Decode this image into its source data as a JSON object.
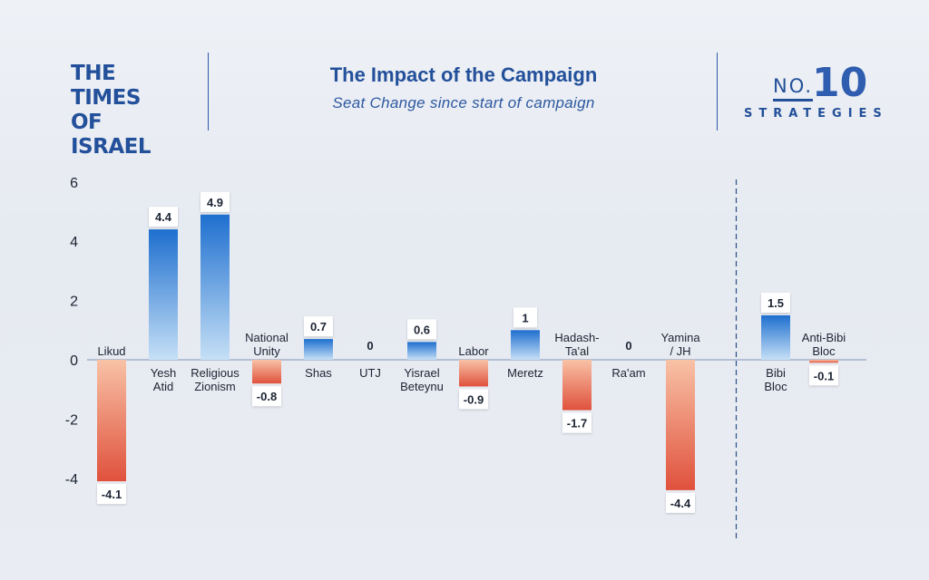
{
  "header": {
    "logo_line1": "THE TIMES",
    "logo_line2": "OF ISRAEL",
    "brand_no": "NO.",
    "brand_number": "10",
    "brand_word": "STRATEGIES"
  },
  "colors": {
    "positive_top": "#1e6fcf",
    "positive_bottom": "#c6e0f6",
    "negative_top": "#f8c2a6",
    "negative_bottom": "#e0513c",
    "text_dark": "#1c2433",
    "title_blue": "#23509a"
  },
  "chart_data": {
    "type": "bar",
    "title": "The Impact of the Campaign",
    "subtitle": "Seat Change since start of campaign",
    "xlabel": "",
    "ylabel": "",
    "ylim": [
      -6,
      6
    ],
    "yticks": [
      6,
      4,
      2,
      0,
      -2,
      -4
    ],
    "categories": [
      "Likud",
      "Yesh Atid",
      "Religious Zionism",
      "National Unity",
      "Shas",
      "UTJ",
      "Yisrael Beteynu",
      "Labor",
      "Meretz",
      "Hadash-Ta'al",
      "Ra'am",
      "Yamina / JH",
      "Bibi Bloc",
      "Anti-Bibi Bloc"
    ],
    "category_lines": [
      [
        "Likud"
      ],
      [
        "Yesh",
        "Atid"
      ],
      [
        "Religious",
        "Zionism"
      ],
      [
        "National",
        "Unity"
      ],
      [
        "Shas"
      ],
      [
        "UTJ"
      ],
      [
        "Yisrael",
        "Beteynu"
      ],
      [
        "Labor"
      ],
      [
        "Meretz"
      ],
      [
        "Hadash-",
        "Ta'al"
      ],
      [
        "Ra'am"
      ],
      [
        "Yamina",
        "/ JH"
      ],
      [
        "Bibi",
        "Bloc"
      ],
      [
        "Anti-Bibi",
        "Bloc"
      ]
    ],
    "values": [
      -4.1,
      4.4,
      4.9,
      -0.8,
      0.7,
      0,
      0.6,
      -0.9,
      1,
      -1.7,
      0,
      -4.4,
      1.5,
      -0.1
    ],
    "value_labels": [
      "-4.1",
      "4.4",
      "4.9",
      "-0.8",
      "0.7",
      "0",
      "0.6",
      "-0.9",
      "1",
      "-1.7",
      "0",
      "-4.4",
      "1.5",
      "-0.1"
    ],
    "separator_after_index": 11,
    "grid": false,
    "legend": "none"
  }
}
